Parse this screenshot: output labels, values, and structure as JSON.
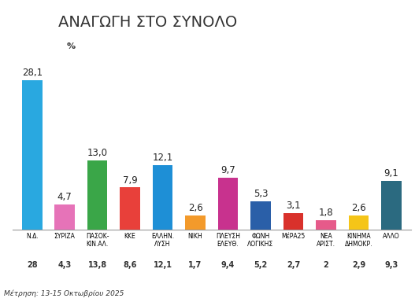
{
  "chart_data": {
    "type": "bar",
    "title": "ΑΝΑΓΩΓΗ ΣΤΟ ΣΥΝΟΛΟ",
    "subtitle": "%",
    "note": "Μέτρηση: 13-15 Οκτωβρίου 2025",
    "categories": [
      "Ν.Δ.",
      "ΣΥΡΙΖΑ",
      "ΠΑΣΟΚ-\nΚΙΝ.ΑΛ.",
      "ΚΚΕ",
      "ΕΛΛΗΝ.\nΛΥΣΗ",
      "ΝΙΚΗ",
      "ΠΛΕΥΣΗ\nΕΛΕΥΘ.",
      "ΦΩΝΗ\nΛΟΓΙΚΗΣ",
      "ΜέΡΑ25",
      "ΝΕΑ\nΑΡΙΣΤ.",
      "ΚΙΝΗΜΑ\nΔΗΜΟΚΡ.",
      "ΑΛΛΟ"
    ],
    "values": [
      28.1,
      4.7,
      13.0,
      7.9,
      12.1,
      2.6,
      9.7,
      5.3,
      3.1,
      1.8,
      2.6,
      9.1
    ],
    "value_labels": [
      "28,1",
      "4,7",
      "13,0",
      "7,9",
      "12,1",
      "2,6",
      "9,7",
      "5,3",
      "3,1",
      "1,8",
      "2,6",
      "9,1"
    ],
    "previous_values": [
      28,
      4.3,
      13.8,
      8.6,
      12.1,
      1.7,
      9.4,
      5.2,
      2.7,
      2,
      2.9,
      9.3
    ],
    "previous_labels": [
      "28",
      "4,3",
      "13,8",
      "8,6",
      "12,1",
      "1,7",
      "9,4",
      "5,2",
      "2,7",
      "2",
      "2,9",
      "9,3"
    ],
    "colors": [
      "#29a8e0",
      "#e673b8",
      "#3aa648",
      "#e8403a",
      "#1e8fd6",
      "#f39a2b",
      "#c8328e",
      "#2a5fa8",
      "#d9312b",
      "#e65a8a",
      "#f5c518",
      "#2b6a80"
    ],
    "data_labels": true,
    "tick_labels": "x",
    "grid": false
  }
}
